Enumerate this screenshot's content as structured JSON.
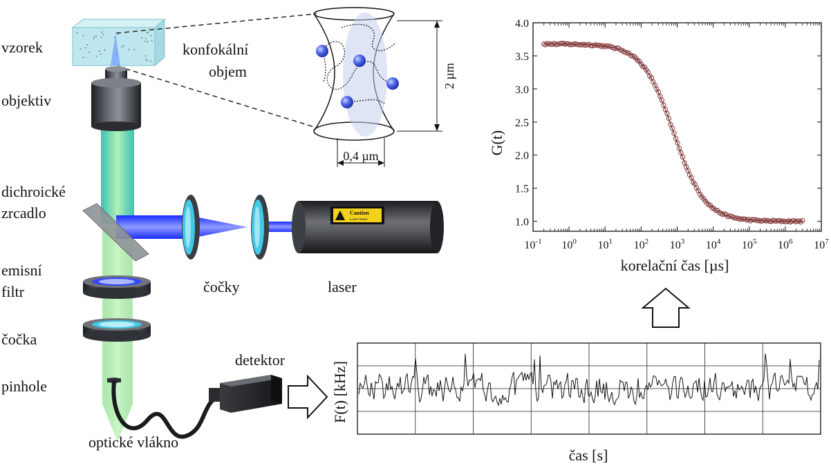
{
  "labels": {
    "sample": "vzorek",
    "confocal_line1": "konfokální",
    "confocal_line2": "objem",
    "objective": "objektiv",
    "dichroic_line1": "dichroické",
    "dichroic_line2": "zrcadlo",
    "emission_line1": "emisní",
    "emission_line2": "filtr",
    "lenses": "čočky",
    "laser": "laser",
    "lens": "čočka",
    "pinhole": "pinhole",
    "detector": "detektor",
    "fiber": "optické vlákno",
    "caution": "Caution",
    "caution_sub": "Laser beam",
    "size_height": "2 µm",
    "size_width": "0,4 µm"
  },
  "colors": {
    "laser_beam": "#2a3cff",
    "emission_beam": "#7ee07a",
    "lens_glass": "#43c8e6",
    "sample_box": "#b9e6ef",
    "metal_dark": "#2f3236",
    "particle": "#3b57e0",
    "curve_points": "#8a3b3b"
  },
  "chart_data": [
    {
      "type": "scatter",
      "title": "",
      "xlabel": "korelační čas [µs]",
      "ylabel": "G(t)",
      "x_scale": "log",
      "xlim": [
        0.1,
        10000000
      ],
      "ylim": [
        0.85,
        4.0
      ],
      "x_tick_labels": [
        "10-1",
        "100",
        "101",
        "102",
        "103",
        "104",
        "105",
        "106",
        "107"
      ],
      "y_ticks": [
        1.0,
        1.5,
        2.0,
        2.5,
        3.0,
        3.5,
        4.0
      ],
      "y_tick_labels": [
        "1.0",
        "1.5",
        "2.0",
        "2.5",
        "3.0",
        "3.5",
        "4.0"
      ],
      "grid": false,
      "fit_model": {
        "g0": 2.68,
        "g_inf": 1.0,
        "tau_d": 800,
        "range": [
          0.2,
          3000000
        ]
      }
    },
    {
      "type": "line",
      "title": "",
      "xlabel": "čas [s]",
      "ylabel": "F(t) [kHz]",
      "grid": true,
      "baseline": 0.5,
      "amplitude": 0.22
    }
  ]
}
